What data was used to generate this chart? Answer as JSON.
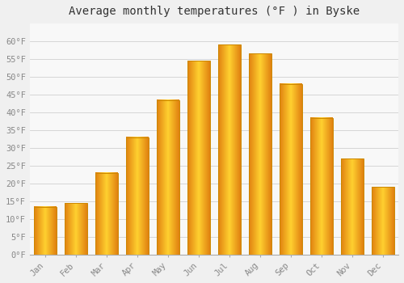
{
  "title": "Average monthly temperatures (°F ) in Byske",
  "months": [
    "Jan",
    "Feb",
    "Mar",
    "Apr",
    "May",
    "Jun",
    "Jul",
    "Aug",
    "Sep",
    "Oct",
    "Nov",
    "Dec"
  ],
  "values": [
    13.5,
    14.5,
    23.0,
    33.0,
    43.5,
    54.5,
    59.0,
    56.5,
    48.0,
    38.5,
    27.0,
    19.0
  ],
  "bar_color": "#FFA500",
  "bar_edge_color": "#CC8800",
  "background_color": "#f0f0f0",
  "plot_bg_color": "#f8f8f8",
  "grid_color": "#d0d0d0",
  "ylim": [
    0,
    65
  ],
  "yticks": [
    0,
    5,
    10,
    15,
    20,
    25,
    30,
    35,
    40,
    45,
    50,
    55,
    60
  ],
  "ytick_labels": [
    "0°F",
    "5°F",
    "10°F",
    "15°F",
    "20°F",
    "25°F",
    "30°F",
    "35°F",
    "40°F",
    "45°F",
    "50°F",
    "55°F",
    "60°F"
  ],
  "title_fontsize": 10,
  "tick_fontsize": 7.5,
  "tick_color": "#888888",
  "bar_width": 0.72
}
